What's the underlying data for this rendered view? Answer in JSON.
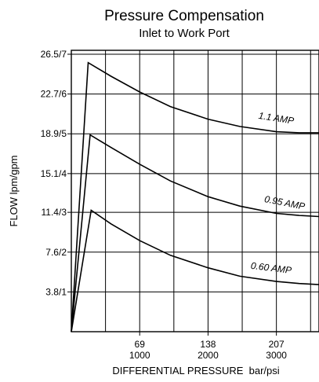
{
  "chart_data": {
    "type": "line",
    "title": "Pressure Compensation",
    "subtitle": "Inlet to Work Port",
    "xlabel": "DIFFERENTIAL PRESSURE  bar/psi",
    "ylabel": "FLOW lpm/gpm",
    "xlim": [
      0,
      250
    ],
    "ylim": [
      0,
      26.5
    ],
    "grid": true,
    "x_ticks": [
      {
        "value": 69,
        "bar": "69",
        "psi": "1000"
      },
      {
        "value": 138,
        "bar": "138",
        "psi": "2000"
      },
      {
        "value": 207,
        "bar": "207",
        "psi": "3000"
      }
    ],
    "y_ticks": [
      {
        "value": 3.8,
        "label": "3.8/1"
      },
      {
        "value": 7.6,
        "label": "7.6/2"
      },
      {
        "value": 11.4,
        "label": "11.4/3"
      },
      {
        "value": 15.1,
        "label": "15.1/4"
      },
      {
        "value": 18.9,
        "label": "18.9/5"
      },
      {
        "value": 22.7,
        "label": "22.7/6"
      },
      {
        "value": 26.5,
        "label": "26.5/7"
      }
    ],
    "series": [
      {
        "name": "1.1 AMP",
        "x": [
          0,
          17,
          40,
          69,
          100,
          138,
          170,
          207,
          230,
          250
        ],
        "y": [
          0,
          25.7,
          24.4,
          22.9,
          21.5,
          20.3,
          19.6,
          19.1,
          19.0,
          19.0
        ]
      },
      {
        "name": "0.95 AMP",
        "x": [
          0,
          19,
          40,
          69,
          100,
          138,
          170,
          207,
          230,
          250
        ],
        "y": [
          0,
          18.8,
          17.6,
          16.0,
          14.4,
          12.9,
          12.0,
          11.3,
          11.1,
          11.0
        ]
      },
      {
        "name": "0.60 AMP",
        "x": [
          0,
          20,
          40,
          69,
          100,
          138,
          170,
          207,
          230,
          250
        ],
        "y": [
          0,
          11.6,
          10.3,
          8.7,
          7.3,
          6.1,
          5.3,
          4.8,
          4.6,
          4.5
        ]
      }
    ]
  }
}
